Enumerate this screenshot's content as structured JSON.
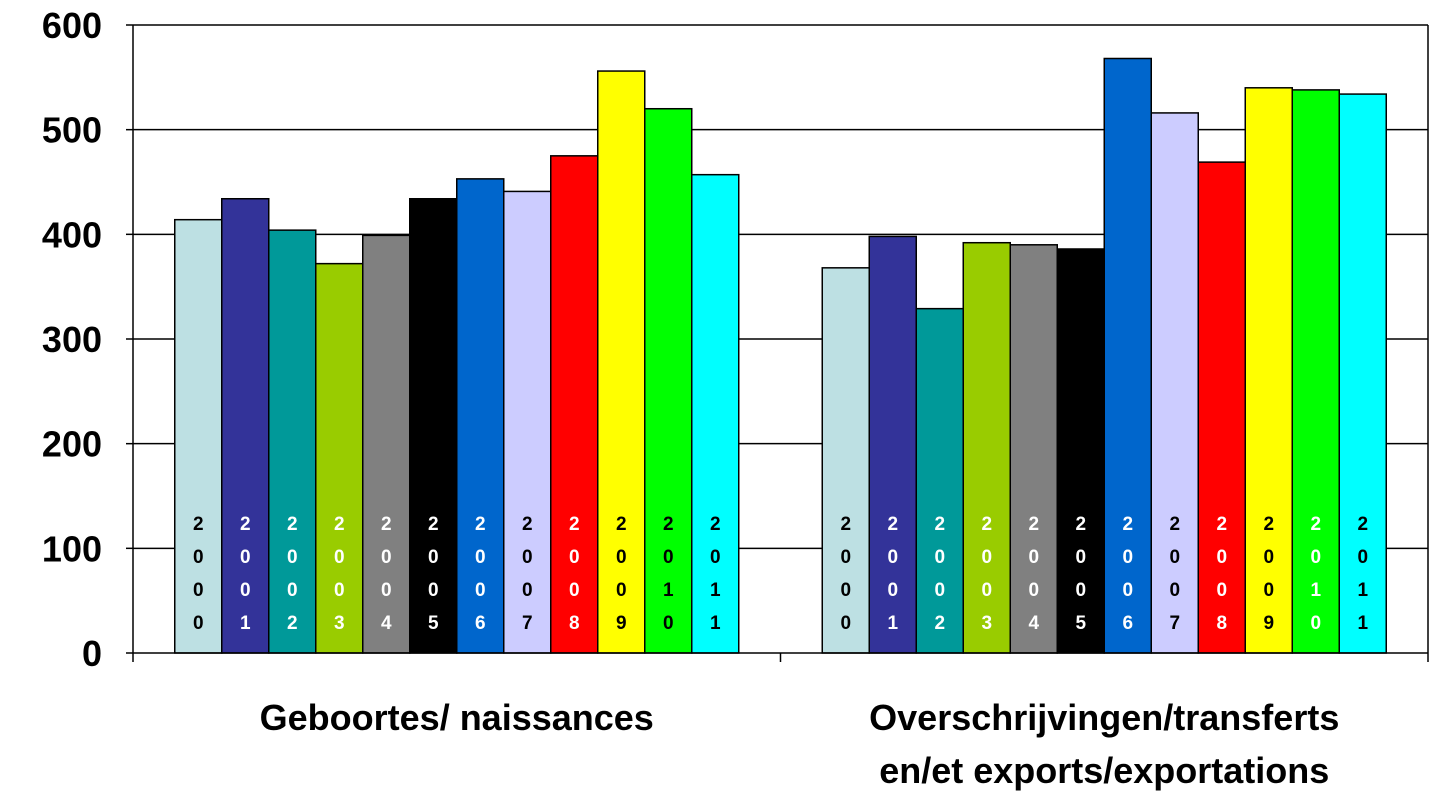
{
  "chart_data": {
    "type": "bar",
    "categories": [
      [
        "Geboortes/ naissances"
      ],
      [
        "Overschrijvingen/transferts",
        "en/et exports/exportations"
      ]
    ],
    "series": [
      {
        "name": "2000",
        "label_chars": [
          "2",
          "0",
          "0",
          "0"
        ],
        "color": "#BDE0E3",
        "label_color": "#000000",
        "values": [
          414,
          368
        ]
      },
      {
        "name": "2001",
        "label_chars": [
          "2",
          "0",
          "0",
          "1"
        ],
        "color": "#333399",
        "label_color": "#FFFFFF",
        "values": [
          434,
          398
        ]
      },
      {
        "name": "2002",
        "label_chars": [
          "2",
          "0",
          "0",
          "2"
        ],
        "color": "#009999",
        "label_color": "#FFFFFF",
        "values": [
          404,
          329
        ]
      },
      {
        "name": "2003",
        "label_chars": [
          "2",
          "0",
          "0",
          "3"
        ],
        "color": "#99CC00",
        "label_color": "#FFFFFF",
        "values": [
          372,
          392
        ]
      },
      {
        "name": "2004",
        "label_chars": [
          "2",
          "0",
          "0",
          "4"
        ],
        "color": "#808080",
        "label_color": "#FFFFFF",
        "values": [
          399,
          390
        ]
      },
      {
        "name": "2005",
        "label_chars": [
          "2",
          "0",
          "0",
          "5"
        ],
        "color": "#000000",
        "label_color": "#FFFFFF",
        "values": [
          434,
          386
        ]
      },
      {
        "name": "2006",
        "label_chars": [
          "2",
          "0",
          "0",
          "6"
        ],
        "color": "#0066CC",
        "label_color": "#FFFFFF",
        "values": [
          453,
          568
        ]
      },
      {
        "name": "2007",
        "label_chars": [
          "2",
          "0",
          "0",
          "7"
        ],
        "color": "#CCCCFF",
        "label_color": "#000000",
        "values": [
          441,
          516
        ]
      },
      {
        "name": "2008",
        "label_chars": [
          "2",
          "0",
          "0",
          "8"
        ],
        "color": "#FF0000",
        "label_color": "#FFFFFF",
        "values": [
          475,
          469
        ]
      },
      {
        "name": "2009",
        "label_chars": [
          "2",
          "0",
          "0",
          "9"
        ],
        "color": "#FFFF00",
        "label_color": "#000000",
        "values": [
          556,
          540
        ]
      },
      {
        "name": "2010",
        "label_chars": [
          "2",
          "0",
          "1",
          "0"
        ],
        "color": "#00FF00",
        "label_color": "#000000",
        "label_color_by_category": [
          "#000000",
          "#FFFFFF"
        ],
        "values": [
          520,
          538
        ]
      },
      {
        "name": "2011",
        "label_chars": [
          "2",
          "0",
          "1",
          "1"
        ],
        "color": "#00FFFF",
        "label_color": "#000000",
        "values": [
          457,
          534
        ]
      }
    ],
    "yticks": [
      "0",
      "100",
      "200",
      "300",
      "400",
      "500",
      "600"
    ],
    "ylim": [
      0,
      600
    ],
    "grid": true,
    "legend": "none",
    "title": "",
    "xlabel": "",
    "ylabel": ""
  }
}
